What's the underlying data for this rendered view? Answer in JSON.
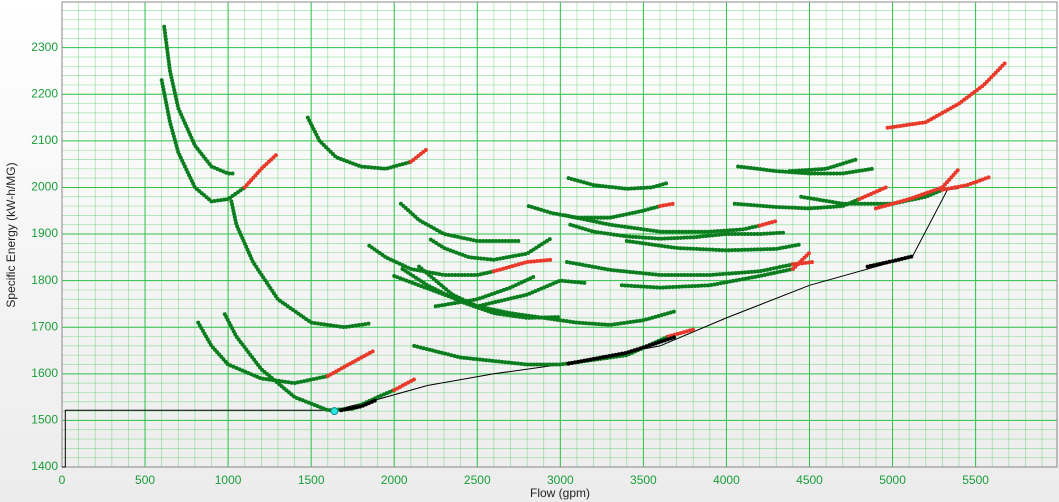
{
  "chart_data": {
    "type": "line",
    "x_label": "Flow (gpm)",
    "y_label": "Specific Energy (kW-h/MG)",
    "xlim": [
      0,
      5990
    ],
    "ylim": [
      1400,
      2398
    ],
    "xticks": [
      0,
      500,
      1000,
      1500,
      2000,
      2500,
      3000,
      3500,
      4000,
      4500,
      5000,
      5500
    ],
    "yticks": [
      1400,
      1500,
      1600,
      1700,
      1800,
      1900,
      2000,
      2100,
      2200,
      2300
    ],
    "grid": true,
    "grid_color": "#2ec24a",
    "series": [
      {
        "style": "line",
        "color": "#000000",
        "x": [
          0,
          20,
          20,
          1640,
          1900,
          2200,
          2600,
          3000,
          3600,
          4000,
          4500,
          5120,
          5330,
          5400
        ],
        "values": [
          1400,
          1400,
          1522,
          1522,
          1545,
          1575,
          1600,
          1620,
          1660,
          1720,
          1790,
          1852,
          1995,
          1998
        ]
      },
      {
        "style": "dots",
        "color": "#0c7d1f",
        "x": [
          615,
          650,
          700,
          800,
          900,
          1000,
          1030
        ],
        "values": [
          2345,
          2250,
          2170,
          2090,
          2045,
          2030,
          2030
        ]
      },
      {
        "style": "dots",
        "color": "#0c7d1f",
        "x": [
          600,
          650,
          700,
          800,
          900,
          1000,
          1100
        ],
        "values": [
          2230,
          2140,
          2075,
          2000,
          1970,
          1975,
          2000
        ]
      },
      {
        "style": "dots",
        "color": "#e8392a",
        "x": [
          1100,
          1200,
          1290
        ],
        "values": [
          2000,
          2040,
          2070
        ]
      },
      {
        "style": "dots",
        "color": "#0c7d1f",
        "x": [
          1020,
          1050,
          1150,
          1300,
          1500,
          1700,
          1850
        ],
        "values": [
          1970,
          1920,
          1840,
          1760,
          1710,
          1700,
          1708
        ]
      },
      {
        "style": "dots",
        "color": "#0c7d1f",
        "x": [
          1480,
          1550,
          1650,
          1800,
          1950,
          2100
        ],
        "values": [
          2150,
          2100,
          2065,
          2045,
          2040,
          2055
        ]
      },
      {
        "style": "dots",
        "color": "#e8392a",
        "x": [
          2100,
          2200
        ],
        "values": [
          2055,
          2083
        ]
      },
      {
        "style": "dots",
        "color": "#0c7d1f",
        "x": [
          820,
          900,
          1000,
          1200,
          1400,
          1600
        ],
        "values": [
          1710,
          1660,
          1620,
          1590,
          1580,
          1595
        ]
      },
      {
        "style": "dots",
        "color": "#e8392a",
        "x": [
          1600,
          1700,
          1880
        ],
        "values": [
          1595,
          1615,
          1650
        ]
      },
      {
        "style": "dots",
        "color": "#0c7d1f",
        "x": [
          980,
          1050,
          1200,
          1400,
          1600,
          1750,
          1900,
          2000
        ],
        "values": [
          1728,
          1680,
          1610,
          1550,
          1522,
          1525,
          1550,
          1565
        ]
      },
      {
        "style": "dots",
        "color": "#e8392a",
        "x": [
          2000,
          2130
        ],
        "values": [
          1565,
          1590
        ]
      },
      {
        "style": "dots",
        "color": "#0c7d1f",
        "x": [
          2040,
          2150,
          2300,
          2500,
          2750
        ],
        "values": [
          1965,
          1930,
          1900,
          1885,
          1885
        ]
      },
      {
        "style": "dots",
        "color": "#0c7d1f",
        "x": [
          2220,
          2300,
          2450,
          2600,
          2800,
          2940
        ],
        "values": [
          1888,
          1870,
          1850,
          1845,
          1858,
          1890
        ]
      },
      {
        "style": "dots",
        "color": "#0c7d1f",
        "x": [
          1850,
          1950,
          2100,
          2300,
          2500,
          2600
        ],
        "values": [
          1875,
          1850,
          1825,
          1812,
          1812,
          1820
        ]
      },
      {
        "style": "dots",
        "color": "#e8392a",
        "x": [
          2600,
          2800,
          2950
        ],
        "values": [
          1820,
          1840,
          1845
        ]
      },
      {
        "style": "dots",
        "color": "#0c7d1f",
        "x": [
          2000,
          2150,
          2300,
          2500,
          2700,
          2900,
          3100,
          3300,
          3500,
          3700
        ],
        "values": [
          1810,
          1790,
          1770,
          1745,
          1730,
          1720,
          1710,
          1705,
          1715,
          1735
        ]
      },
      {
        "style": "dots",
        "color": "#0c7d1f",
        "x": [
          2050,
          2200,
          2400,
          2600,
          2800,
          3000
        ],
        "values": [
          1825,
          1790,
          1755,
          1730,
          1720,
          1722
        ]
      },
      {
        "style": "dots",
        "color": "#0c7d1f",
        "x": [
          2150,
          2350,
          2500,
          2800,
          3000,
          3150
        ],
        "values": [
          1830,
          1770,
          1745,
          1770,
          1800,
          1795
        ]
      },
      {
        "style": "dots",
        "color": "#0c7d1f",
        "x": [
          2250,
          2500,
          2700,
          2850
        ],
        "values": [
          1745,
          1760,
          1785,
          1810
        ]
      },
      {
        "style": "dots",
        "color": "#0c7d1f",
        "x": [
          2810,
          2950,
          3100,
          3300,
          3500,
          3600
        ],
        "values": [
          1960,
          1945,
          1935,
          1935,
          1950,
          1960
        ]
      },
      {
        "style": "dots",
        "color": "#e8392a",
        "x": [
          3600,
          3680
        ],
        "values": [
          1960,
          1965
        ]
      },
      {
        "style": "dots",
        "color": "#0c7d1f",
        "x": [
          3050,
          3200,
          3400,
          3550,
          3650
        ],
        "values": [
          2020,
          2005,
          1997,
          2000,
          2010
        ]
      },
      {
        "style": "dots",
        "color": "#0c7d1f",
        "x": [
          3060,
          3200,
          3400,
          3600,
          3800,
          4000,
          4200,
          4350
        ],
        "values": [
          1920,
          1905,
          1895,
          1890,
          1893,
          1900,
          1900,
          1903
        ]
      },
      {
        "style": "dots",
        "color": "#0c7d1f",
        "x": [
          3030,
          3300,
          3600,
          3900,
          4100,
          4200
        ],
        "values": [
          1940,
          1920,
          1905,
          1905,
          1910,
          1918
        ]
      },
      {
        "style": "dots",
        "color": "#e8392a",
        "x": [
          4200,
          4300
        ],
        "values": [
          1918,
          1928
        ]
      },
      {
        "style": "dots",
        "color": "#0c7d1f",
        "x": [
          3040,
          3300,
          3600,
          3900,
          4200,
          4400
        ],
        "values": [
          1840,
          1823,
          1812,
          1812,
          1820,
          1835
        ]
      },
      {
        "style": "dots",
        "color": "#e8392a",
        "x": [
          4400,
          4520
        ],
        "values": [
          1835,
          1840
        ]
      },
      {
        "style": "dots",
        "color": "#0c7d1f",
        "x": [
          3370,
          3600,
          3900,
          4200,
          4400
        ],
        "values": [
          1790,
          1785,
          1790,
          1810,
          1825
        ]
      },
      {
        "style": "dots",
        "color": "#e8392a",
        "x": [
          4400,
          4500
        ],
        "values": [
          1825,
          1860
        ]
      },
      {
        "style": "dots",
        "color": "#0c7d1f",
        "x": [
          3400,
          3700,
          4000,
          4300,
          4450
        ],
        "values": [
          1885,
          1870,
          1865,
          1868,
          1878
        ]
      },
      {
        "style": "dots",
        "color": "#0c7d1f",
        "x": [
          2120,
          2400,
          2800,
          3000,
          3400,
          3650
        ],
        "values": [
          1660,
          1635,
          1620,
          1620,
          1640,
          1680
        ]
      },
      {
        "style": "dots",
        "color": "#e8392a",
        "x": [
          3650,
          3800
        ],
        "values": [
          1680,
          1695
        ]
      },
      {
        "style": "dots",
        "color": "#0c7d1f",
        "x": [
          4070,
          4300,
          4500,
          4700,
          4880
        ],
        "values": [
          2045,
          2035,
          2030,
          2030,
          2040
        ]
      },
      {
        "style": "dots",
        "color": "#0c7d1f",
        "x": [
          4380,
          4600,
          4780
        ],
        "values": [
          2035,
          2040,
          2060
        ]
      },
      {
        "style": "dots",
        "color": "#0c7d1f",
        "x": [
          4050,
          4300,
          4500,
          4700,
          4800
        ],
        "values": [
          1965,
          1958,
          1955,
          1960,
          1975
        ]
      },
      {
        "style": "dots",
        "color": "#e8392a",
        "x": [
          4800,
          4960
        ],
        "values": [
          1975,
          2000
        ]
      },
      {
        "style": "dots",
        "color": "#0c7d1f",
        "x": [
          4450,
          4700,
          5000,
          5200,
          5300
        ],
        "values": [
          1980,
          1965,
          1965,
          1980,
          1995
        ]
      },
      {
        "style": "dots",
        "color": "#e8392a",
        "x": [
          4900,
          5100,
          5300,
          5400
        ],
        "values": [
          1955,
          1975,
          2000,
          2040
        ]
      },
      {
        "style": "dots",
        "color": "#e8392a",
        "x": [
          5300,
          5450,
          5580
        ],
        "values": [
          1995,
          2005,
          2022
        ]
      },
      {
        "style": "dots",
        "color": "#e8392a",
        "x": [
          4970,
          5200,
          5400,
          5550,
          5680
        ],
        "values": [
          2128,
          2140,
          2180,
          2220,
          2268
        ]
      },
      {
        "style": "dots",
        "color": "#000000",
        "x": [
          1680,
          1800,
          1900
        ],
        "values": [
          1522,
          1530,
          1545
        ]
      },
      {
        "style": "dots",
        "color": "#000000",
        "x": [
          3050,
          3400,
          3700
        ],
        "values": [
          1622,
          1645,
          1680
        ]
      },
      {
        "style": "dots",
        "color": "#000000",
        "x": [
          4850,
          5000,
          5120
        ],
        "values": [
          1830,
          1842,
          1852
        ]
      },
      {
        "style": "marker",
        "color": "#2ee6e0",
        "x": [
          1640
        ],
        "values": [
          1520
        ]
      }
    ]
  }
}
